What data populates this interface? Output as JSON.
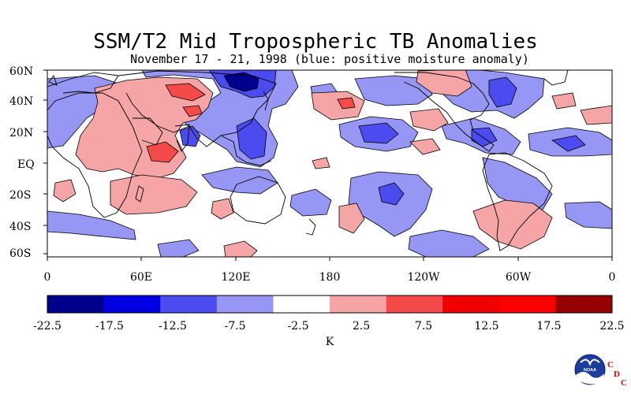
{
  "title": "SSM/T2 Mid Tropospheric TB Anomalies",
  "subtitle": "November 17 - 21, 1998 (blue: positive moisture anomaly)",
  "map": {
    "lat_labels": [
      "60N",
      "40N",
      "20N",
      "EQ",
      "20S",
      "40S",
      "60S"
    ],
    "lon_labels": [
      "0",
      "60E",
      "120E",
      "180",
      "120W",
      "60W",
      "0"
    ]
  },
  "colorbar": {
    "colors": [
      "#00008c",
      "#0000e0",
      "#4b4bf0",
      "#9696f5",
      "#ffffff",
      "#f5a5a5",
      "#f54a4a",
      "#f00000",
      "#fc0000",
      "#960000"
    ],
    "tick_labels": [
      "-22.5",
      "-17.5",
      "-12.5",
      "-7.5",
      "-2.5",
      "2.5",
      "7.5",
      "12.5",
      "17.5",
      "22.5"
    ],
    "unit_label": "K"
  },
  "logo": {
    "noaa_text": "NOAA",
    "cdc_letters": [
      "C",
      "D",
      "C"
    ]
  }
}
